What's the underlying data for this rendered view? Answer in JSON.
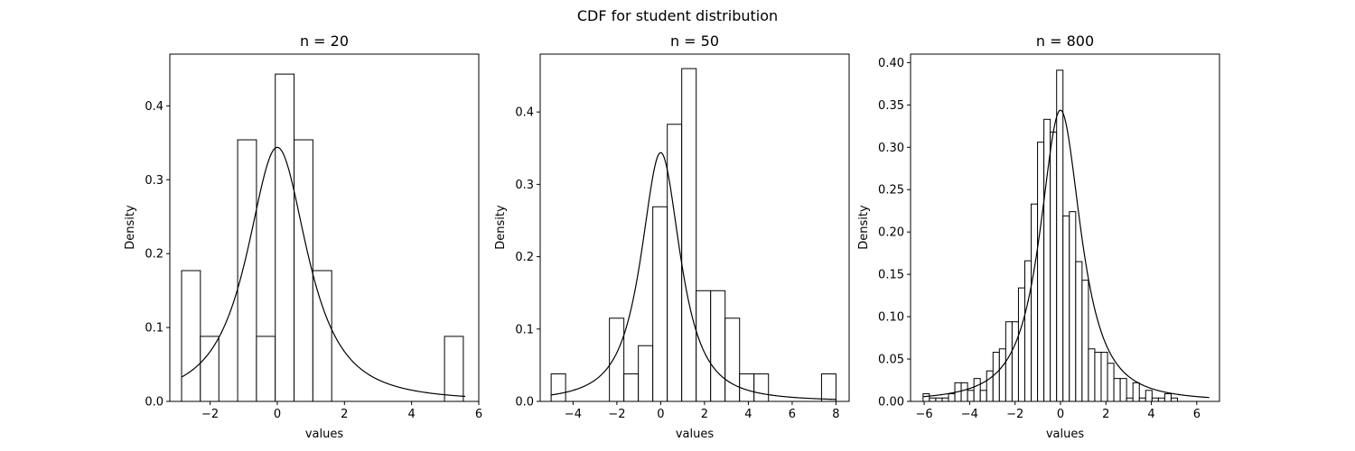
{
  "figure": {
    "suptitle": "CDF for student distribution"
  },
  "chart_data": [
    {
      "type": "bar",
      "title": "n = 20",
      "xlabel": "values",
      "ylabel": "Density",
      "xlim": [
        -3.2,
        6.0
      ],
      "ylim": [
        0,
        0.47
      ],
      "xticks": [
        -2,
        0,
        2,
        4,
        6
      ],
      "xtick_labels": [
        "−2",
        "0",
        "2",
        "4",
        "6"
      ],
      "yticks": [
        0.0,
        0.1,
        0.2,
        0.3,
        0.4
      ],
      "ytick_labels": [
        "0.0",
        "0.1",
        "0.2",
        "0.3",
        "0.4"
      ],
      "bins": [
        {
          "x0": -2.85,
          "x1": -2.29,
          "density": 0.177
        },
        {
          "x0": -2.29,
          "x1": -1.74,
          "density": 0.088
        },
        {
          "x0": -1.74,
          "x1": -1.18,
          "density": 0.0
        },
        {
          "x0": -1.18,
          "x1": -0.62,
          "density": 0.354
        },
        {
          "x0": -0.62,
          "x1": -0.06,
          "density": 0.088
        },
        {
          "x0": -0.06,
          "x1": 0.5,
          "density": 0.443
        },
        {
          "x0": 0.5,
          "x1": 1.06,
          "density": 0.354
        },
        {
          "x0": 1.06,
          "x1": 1.62,
          "density": 0.177
        },
        {
          "x0": 1.62,
          "x1": 2.18,
          "density": 0.0
        },
        {
          "x0": 2.18,
          "x1": 2.74,
          "density": 0.0
        },
        {
          "x0": 2.74,
          "x1": 3.3,
          "density": 0.0
        },
        {
          "x0": 3.3,
          "x1": 3.86,
          "density": 0.0
        },
        {
          "x0": 3.86,
          "x1": 4.42,
          "density": 0.0
        },
        {
          "x0": 4.42,
          "x1": 4.98,
          "density": 0.0
        },
        {
          "x0": 4.98,
          "x1": 5.54,
          "density": 0.088
        }
      ],
      "curve": {
        "distribution": "student-t",
        "df": 1.6,
        "x_from": -2.85,
        "x_to": 5.6
      }
    },
    {
      "type": "bar",
      "title": "n = 50",
      "xlabel": "values",
      "ylabel": "Density",
      "xlim": [
        -5.5,
        8.6
      ],
      "ylim": [
        0,
        0.48
      ],
      "xticks": [
        -4,
        -2,
        0,
        2,
        4,
        6,
        8
      ],
      "xtick_labels": [
        "−4",
        "−2",
        "0",
        "2",
        "4",
        "6",
        "8"
      ],
      "yticks": [
        0.0,
        0.1,
        0.2,
        0.3,
        0.4
      ],
      "ytick_labels": [
        "0.0",
        "0.1",
        "0.2",
        "0.3",
        "0.4"
      ],
      "bins": [
        {
          "x0": -5.0,
          "x1": -4.34,
          "density": 0.038
        },
        {
          "x0": -2.34,
          "x1": -1.68,
          "density": 0.115
        },
        {
          "x0": -1.68,
          "x1": -1.02,
          "density": 0.038
        },
        {
          "x0": -1.02,
          "x1": -0.36,
          "density": 0.077
        },
        {
          "x0": -0.36,
          "x1": 0.3,
          "density": 0.269
        },
        {
          "x0": 0.3,
          "x1": 0.96,
          "density": 0.383
        },
        {
          "x0": 0.96,
          "x1": 1.62,
          "density": 0.46
        },
        {
          "x0": 1.62,
          "x1": 2.28,
          "density": 0.153
        },
        {
          "x0": 2.28,
          "x1": 2.94,
          "density": 0.153
        },
        {
          "x0": 2.94,
          "x1": 3.6,
          "density": 0.115
        },
        {
          "x0": 3.6,
          "x1": 4.26,
          "density": 0.038
        },
        {
          "x0": 4.26,
          "x1": 4.92,
          "density": 0.038
        },
        {
          "x0": 7.34,
          "x1": 8.0,
          "density": 0.038
        }
      ],
      "curve": {
        "distribution": "student-t",
        "df": 1.6,
        "x_from": -5.0,
        "x_to": 8.0
      }
    },
    {
      "type": "bar",
      "title": "n = 800",
      "xlabel": "values",
      "ylabel": "Density",
      "xlim": [
        -6.6,
        7.0
      ],
      "ylim": [
        0,
        0.41
      ],
      "xticks": [
        -6,
        -4,
        -2,
        0,
        2,
        4,
        6
      ],
      "xtick_labels": [
        "−6",
        "−4",
        "−2",
        "0",
        "2",
        "4",
        "6"
      ],
      "yticks": [
        0.0,
        0.05,
        0.1,
        0.15,
        0.2,
        0.25,
        0.3,
        0.35,
        0.4
      ],
      "ytick_labels": [
        "0.00",
        "0.05",
        "0.10",
        "0.15",
        "0.20",
        "0.25",
        "0.30",
        "0.35",
        "0.40"
      ],
      "bin_start": -6.05,
      "bin_width": 0.28,
      "densities": [
        0.009,
        0.004,
        0.004,
        0.004,
        0.009,
        0.022,
        0.022,
        0.013,
        0.027,
        0.013,
        0.036,
        0.058,
        0.062,
        0.094,
        0.094,
        0.134,
        0.166,
        0.233,
        0.306,
        0.333,
        0.318,
        0.391,
        0.219,
        0.224,
        0.165,
        0.143,
        0.062,
        0.058,
        0.058,
        0.045,
        0.027,
        0.027,
        0.004,
        0.022,
        0.004,
        0.013,
        0.004,
        0.004,
        0.009,
        0.004
      ],
      "curve": {
        "distribution": "student-t",
        "df": 1.6,
        "x_from": -6.05,
        "x_to": 6.55
      }
    }
  ]
}
